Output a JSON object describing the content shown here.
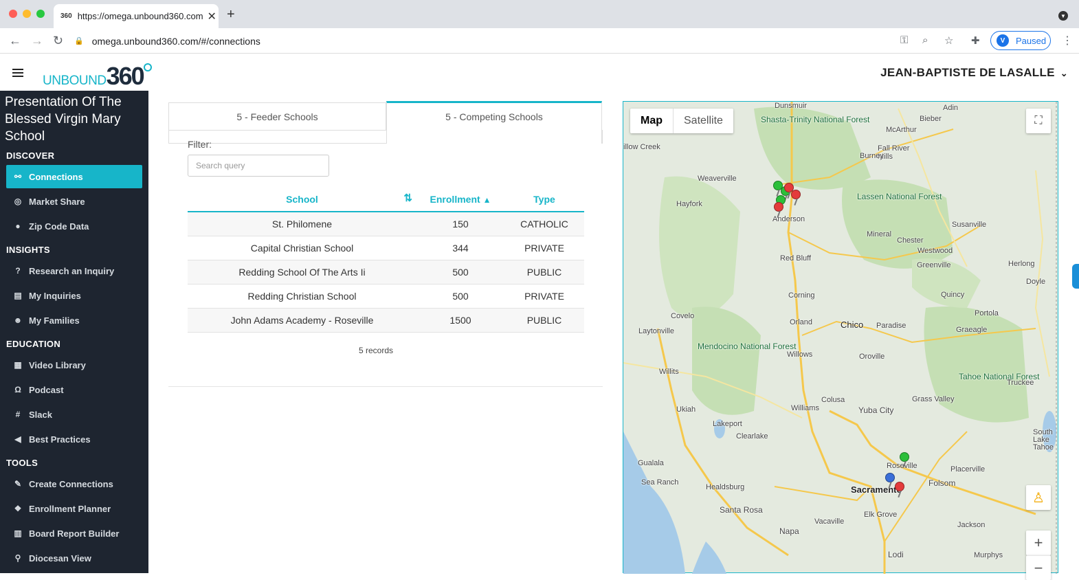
{
  "browser": {
    "tab_favicon": "360",
    "tab_title": "https://omega.unbound360.com",
    "url": "omega.unbound360.com/#/connections",
    "paused_label": "Paused"
  },
  "header": {
    "logo_text_small": "UNBOUND",
    "logo_text_big": "360",
    "user_name": "JEAN-BAPTISTE DE LASALLE"
  },
  "sidebar": {
    "school_name": "Presentation Of The Blessed Virgin Mary School",
    "sections": {
      "discover": "DISCOVER",
      "insights": "INSIGHTS",
      "education": "EDUCATION",
      "tools": "TOOLS"
    },
    "discover_items": [
      {
        "label": "Connections",
        "icon": "sitemap-icon"
      },
      {
        "label": "Market Share",
        "icon": "target-icon"
      },
      {
        "label": "Zip Code Data",
        "icon": "map-marker-icon"
      }
    ],
    "insights_items": [
      {
        "label": "Research an Inquiry",
        "icon": "question-icon"
      },
      {
        "label": "My Inquiries",
        "icon": "map-icon"
      },
      {
        "label": "My Families",
        "icon": "users-icon"
      }
    ],
    "education_items": [
      {
        "label": "Video Library",
        "icon": "film-icon"
      },
      {
        "label": "Podcast",
        "icon": "headphones-icon"
      },
      {
        "label": "Slack",
        "icon": "slack-icon"
      },
      {
        "label": "Best Practices",
        "icon": "bullhorn-icon"
      }
    ],
    "tools_items": [
      {
        "label": "Create Connections",
        "icon": "magic-icon"
      },
      {
        "label": "Enrollment Planner",
        "icon": "cubes-icon"
      },
      {
        "label": "Board Report Builder",
        "icon": "chart-icon"
      },
      {
        "label": "Diocesan View",
        "icon": "hierarchy-icon"
      }
    ]
  },
  "main": {
    "tabs": [
      {
        "label": "5 - Feeder Schools"
      },
      {
        "label": "5 - Competing Schools"
      }
    ],
    "filter_label": "Filter:",
    "search_placeholder": "Search query",
    "columns": {
      "school": "School",
      "enrollment": "Enrollment",
      "type": "Type"
    },
    "rows": [
      {
        "school": "St. Philomene",
        "enrollment": "150",
        "type": "CATHOLIC"
      },
      {
        "school": "Capital Christian School",
        "enrollment": "344",
        "type": "PRIVATE"
      },
      {
        "school": "Redding School Of The Arts Ii",
        "enrollment": "500",
        "type": "PUBLIC"
      },
      {
        "school": "Redding Christian School",
        "enrollment": "500",
        "type": "PRIVATE"
      },
      {
        "school": "John Adams Academy - Roseville",
        "enrollment": "1500",
        "type": "PUBLIC"
      }
    ],
    "records_label": "5 records"
  },
  "map": {
    "type_map": "Map",
    "type_satellite": "Satellite",
    "zoom_in": "+",
    "zoom_out": "−",
    "labels": {
      "dunsmuir": "Dunsmuir",
      "adin": "Adin",
      "bieber": "Bieber",
      "mcarthur": "McArthur",
      "shasta": "Shasta-Trinity National Forest",
      "fallriver": "Fall River Mills",
      "burney": "Burney",
      "willowcreek": "illow Creek",
      "weaverville": "Weaverville",
      "hayfork": "Hayfork",
      "anderson": "Anderson",
      "lassen": "Lassen National Forest",
      "susanville": "Susanville",
      "mineral": "Mineral",
      "chester": "Chester",
      "westwood": "Westwood",
      "redbluff": "Red Bluff",
      "greenville": "Greenville",
      "herlong": "Herlong",
      "doyle": "Doyle",
      "corning": "Corning",
      "quincy": "Quincy",
      "covelo": "Covelo",
      "orland": "Orland",
      "chico": "Chico",
      "paradise": "Paradise",
      "portola": "Portola",
      "graeagle": "Graeagle",
      "laytonville": "Laytonville",
      "mendocino": "Mendocino National Forest",
      "willows": "Willows",
      "oroville": "Oroville",
      "willits": "Willits",
      "tahoe": "Tahoe National Forest",
      "truckee": "Truckee",
      "colusa": "Colusa",
      "grassvalley": "Grass Valley",
      "ukiah": "Ukiah",
      "williams": "Williams",
      "yubacity": "Yuba City",
      "lakeport": "Lakeport",
      "clearlake": "Clearlake",
      "roseville": "Roseville",
      "placerville": "Placerville",
      "southlake": "South Lake Tahoe",
      "gualala": "Gualala",
      "searanch": "Sea Ranch",
      "healdsburg": "Healdsburg",
      "sacramento": "Sacramento",
      "folsom": "Folsom",
      "santarosa": "Santa Rosa",
      "elkgrove": "Elk Grove",
      "vacaville": "Vacaville",
      "jackson": "Jackson",
      "napa": "Napa",
      "lodi": "Lodi",
      "murphys": "Murphys"
    },
    "colors": {
      "water": "#a6cbe8",
      "land": "#e4eadf",
      "forest": "#c5dfb4",
      "road": "#f5c84c",
      "pin_green": "#2bbf3a",
      "pin_red": "#e43b3b",
      "pin_blue": "#3a6fd8"
    }
  }
}
